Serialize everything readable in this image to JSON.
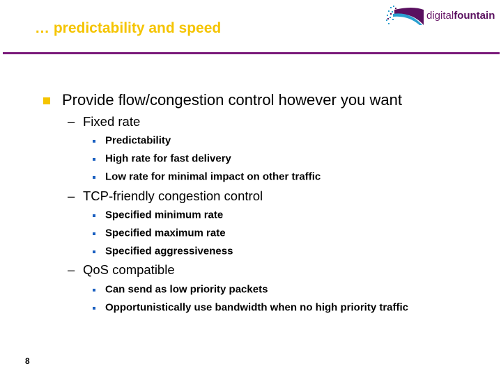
{
  "slide": {
    "title": "… predictability and speed",
    "page_number": "8",
    "logo": {
      "text_regular": "digital",
      "text_bold": "fountain"
    },
    "colors": {
      "title": "#f5c400",
      "rule": "#7a1a7a",
      "bullet_l1": "#f5c400",
      "bullet_l3": "#1a5fc0"
    },
    "bullets": [
      {
        "level": 1,
        "text": "Provide flow/congestion control however you want"
      },
      {
        "level": 2,
        "text": "Fixed rate"
      },
      {
        "level": 3,
        "text": "Predictability"
      },
      {
        "level": 3,
        "text": "High rate for fast delivery"
      },
      {
        "level": 3,
        "text": "Low rate for minimal impact on other traffic"
      },
      {
        "level": 2,
        "text": "TCP-friendly congestion control"
      },
      {
        "level": 3,
        "text": "Specified minimum rate"
      },
      {
        "level": 3,
        "text": "Specified maximum rate"
      },
      {
        "level": 3,
        "text": "Specified aggressiveness"
      },
      {
        "level": 2,
        "text": "QoS compatible"
      },
      {
        "level": 3,
        "text": "Can send as low priority packets"
      },
      {
        "level": 3,
        "text": "Opportunistically use bandwidth when no high priority traffic"
      }
    ]
  }
}
